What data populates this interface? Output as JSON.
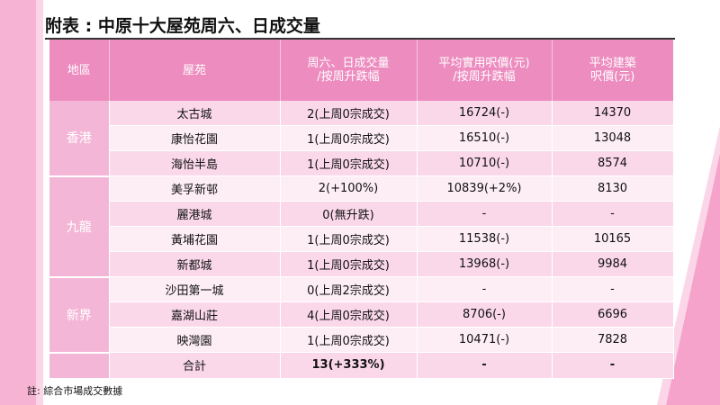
{
  "title": "附表 : 中原十大屋苑周六、日成交量",
  "headers": {
    "region": "地區",
    "estate": "屋苑",
    "volume_line1": "周六、日成交量",
    "volume_line2": "/按周升跌幅",
    "saleable_line1": "平均實用呎價(元)",
    "saleable_line2": "/按周升跌幅",
    "gross_line1": "平均建築",
    "gross_line2": "呎價(元)"
  },
  "regions": {
    "hk": "香港",
    "kln": "九龍",
    "nt": "新界"
  },
  "rows": [
    {
      "estate": "太古城",
      "volume": "2(上周0宗成交)",
      "saleable": "16724(-)",
      "gross": "14370"
    },
    {
      "estate": "康怡花園",
      "volume": "1(上周0宗成交)",
      "saleable": "16510(-)",
      "gross": "13048"
    },
    {
      "estate": "海怡半島",
      "volume": "1(上周0宗成交)",
      "saleable": "10710(-)",
      "gross": "8574"
    },
    {
      "estate": "美孚新邨",
      "volume": "2(+100%)",
      "saleable": "10839(+2%)",
      "gross": "8130"
    },
    {
      "estate": "麗港城",
      "volume": "0(無升跌)",
      "saleable": "-",
      "gross": "-"
    },
    {
      "estate": "黃埔花園",
      "volume": "1(上周0宗成交)",
      "saleable": "11538(-)",
      "gross": "10165"
    },
    {
      "estate": "新都城",
      "volume": "1(上周0宗成交)",
      "saleable": "13968(-)",
      "gross": "9984"
    },
    {
      "estate": "沙田第一城",
      "volume": "0(上周2宗成交)",
      "saleable": "-",
      "gross": "-"
    },
    {
      "estate": "嘉湖山莊",
      "volume": "4(上周0宗成交)",
      "saleable": "8706(-)",
      "gross": "6696"
    },
    {
      "estate": "映灣園",
      "volume": "1(上周0宗成交)",
      "saleable": "10471(-)",
      "gross": "7828"
    }
  ],
  "total": {
    "label": "合計",
    "volume": "13(+333%)",
    "saleable": "-",
    "gross": "-"
  },
  "note": "註: 綜合市場成交數據",
  "colors": {
    "header_bg": "#ec8cbf",
    "region_bg": "#f4b6d6",
    "row_odd": "#fad8ea",
    "row_even": "#fdedf5",
    "decor_pink": "#f5a3cb"
  }
}
